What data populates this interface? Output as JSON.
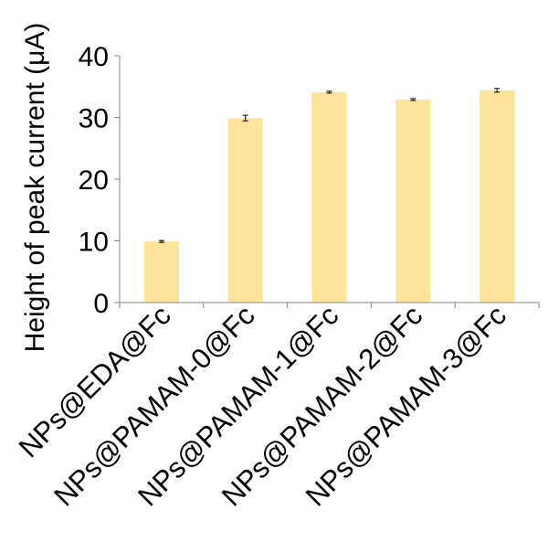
{
  "chart_data": {
    "type": "bar",
    "title": "",
    "xlabel": "",
    "ylabel": "Height of peak current (μA)",
    "categories": [
      "NPs@EDA@Fc",
      "NPs@PAMAM-0@Fc",
      "NPs@PAMAM-1@Fc",
      "NPs@PAMAM-2@Fc",
      "NPs@PAMAM-3@Fc"
    ],
    "values": [
      9.9,
      29.9,
      34.1,
      32.9,
      34.4
    ],
    "errors": [
      0.15,
      0.45,
      0.15,
      0.15,
      0.3
    ],
    "ylim": [
      0,
      40
    ],
    "yticks": [
      0,
      10,
      20,
      30,
      40
    ],
    "bar_color": "#fde49a",
    "axis_color": "#868686",
    "grid": false,
    "legend": "none"
  }
}
